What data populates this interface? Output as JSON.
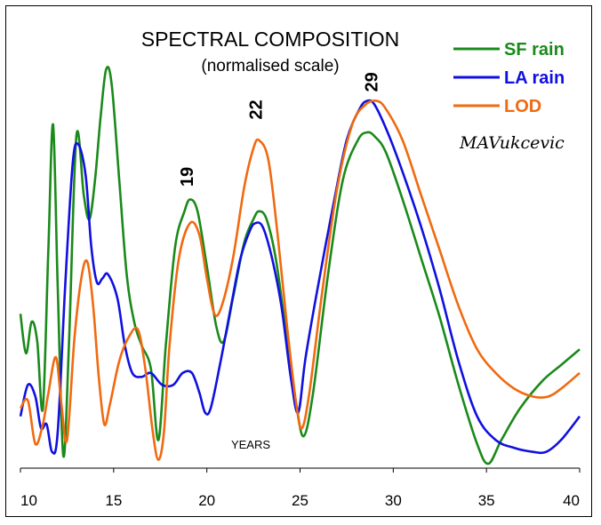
{
  "chart_data": {
    "type": "line",
    "title": "SPECTRAL COMPOSITION",
    "subtitle": "(normalised scale)",
    "xlabel": "YEARS",
    "author": "MAVukcevic",
    "xlim": [
      10,
      40
    ],
    "ylim": [
      0,
      1
    ],
    "x_ticks": [
      "10",
      "15",
      "20",
      "25",
      "30",
      "35",
      "40"
    ],
    "grid": false,
    "legend_position": "top-right",
    "annotations": [
      {
        "label": "19",
        "x": 19.0,
        "y": 0.68
      },
      {
        "label": "22",
        "x": 22.7,
        "y": 0.85
      },
      {
        "label": "29",
        "x": 28.9,
        "y": 0.92
      }
    ],
    "series": [
      {
        "name": "SF rain",
        "color": "#1a8a1a",
        "points": [
          [
            10,
            0.38
          ],
          [
            10.3,
            0.28
          ],
          [
            10.6,
            0.36
          ],
          [
            10.9,
            0.31
          ],
          [
            11.2,
            0.14
          ],
          [
            11.5,
            0.55
          ],
          [
            11.75,
            0.86
          ],
          [
            12,
            0.45
          ],
          [
            12.3,
            0.02
          ],
          [
            12.6,
            0.3
          ],
          [
            13,
            0.83
          ],
          [
            13.4,
            0.68
          ],
          [
            13.7,
            0.62
          ],
          [
            14,
            0.72
          ],
          [
            14.3,
            0.88
          ],
          [
            14.6,
            1.0
          ],
          [
            14.9,
            0.96
          ],
          [
            15.3,
            0.72
          ],
          [
            15.7,
            0.48
          ],
          [
            16.1,
            0.36
          ],
          [
            16.5,
            0.3
          ],
          [
            17,
            0.24
          ],
          [
            17.4,
            0.06
          ],
          [
            17.8,
            0.3
          ],
          [
            18.3,
            0.55
          ],
          [
            18.8,
            0.64
          ],
          [
            19.1,
            0.67
          ],
          [
            19.5,
            0.64
          ],
          [
            20,
            0.5
          ],
          [
            20.5,
            0.35
          ],
          [
            20.9,
            0.31
          ],
          [
            21.4,
            0.42
          ],
          [
            22,
            0.56
          ],
          [
            22.5,
            0.62
          ],
          [
            22.8,
            0.64
          ],
          [
            23.2,
            0.62
          ],
          [
            23.7,
            0.52
          ],
          [
            24.2,
            0.35
          ],
          [
            24.8,
            0.15
          ],
          [
            25.2,
            0.07
          ],
          [
            25.7,
            0.18
          ],
          [
            26.5,
            0.48
          ],
          [
            27.3,
            0.72
          ],
          [
            28.1,
            0.82
          ],
          [
            28.6,
            0.84
          ],
          [
            29,
            0.83
          ],
          [
            29.6,
            0.79
          ],
          [
            30.5,
            0.67
          ],
          [
            31.5,
            0.52
          ],
          [
            32.5,
            0.37
          ],
          [
            33.5,
            0.2
          ],
          [
            34.5,
            0.05
          ],
          [
            35.1,
            0.0
          ],
          [
            35.8,
            0.06
          ],
          [
            36.8,
            0.14
          ],
          [
            38,
            0.21
          ],
          [
            39,
            0.25
          ],
          [
            40,
            0.29
          ]
        ]
      },
      {
        "name": "LA rain",
        "color": "#1010e0",
        "points": [
          [
            10,
            0.12
          ],
          [
            10.4,
            0.2
          ],
          [
            10.8,
            0.17
          ],
          [
            11.1,
            0.09
          ],
          [
            11.4,
            0.1
          ],
          [
            11.7,
            0.03
          ],
          [
            12,
            0.08
          ],
          [
            12.4,
            0.45
          ],
          [
            12.8,
            0.76
          ],
          [
            13.1,
            0.81
          ],
          [
            13.5,
            0.73
          ],
          [
            13.8,
            0.55
          ],
          [
            14.1,
            0.46
          ],
          [
            14.4,
            0.47
          ],
          [
            14.7,
            0.48
          ],
          [
            15.2,
            0.42
          ],
          [
            15.6,
            0.3
          ],
          [
            16,
            0.23
          ],
          [
            16.5,
            0.22
          ],
          [
            17,
            0.23
          ],
          [
            17.6,
            0.2
          ],
          [
            18.2,
            0.2
          ],
          [
            18.7,
            0.23
          ],
          [
            19.2,
            0.23
          ],
          [
            19.6,
            0.18
          ],
          [
            19.9,
            0.13
          ],
          [
            20.2,
            0.14
          ],
          [
            20.7,
            0.25
          ],
          [
            21.3,
            0.4
          ],
          [
            21.8,
            0.52
          ],
          [
            22.3,
            0.59
          ],
          [
            22.6,
            0.61
          ],
          [
            23,
            0.6
          ],
          [
            23.5,
            0.52
          ],
          [
            24,
            0.4
          ],
          [
            24.5,
            0.22
          ],
          [
            24.9,
            0.13
          ],
          [
            25.3,
            0.27
          ],
          [
            26,
            0.46
          ],
          [
            26.8,
            0.66
          ],
          [
            27.5,
            0.82
          ],
          [
            28.2,
            0.9
          ],
          [
            28.6,
            0.92
          ],
          [
            29,
            0.91
          ],
          [
            29.7,
            0.84
          ],
          [
            30.5,
            0.74
          ],
          [
            31.5,
            0.6
          ],
          [
            32.5,
            0.44
          ],
          [
            33.5,
            0.26
          ],
          [
            34.5,
            0.12
          ],
          [
            35.5,
            0.06
          ],
          [
            36.5,
            0.04
          ],
          [
            37.5,
            0.03
          ],
          [
            38.2,
            0.03
          ],
          [
            39,
            0.06
          ],
          [
            40,
            0.12
          ]
        ]
      },
      {
        "name": "LOD",
        "color": "#f06a10",
        "points": [
          [
            10,
            0.14
          ],
          [
            10.4,
            0.16
          ],
          [
            10.8,
            0.05
          ],
          [
            11.2,
            0.1
          ],
          [
            11.5,
            0.18
          ],
          [
            11.9,
            0.27
          ],
          [
            12.2,
            0.15
          ],
          [
            12.5,
            0.06
          ],
          [
            12.9,
            0.32
          ],
          [
            13.3,
            0.48
          ],
          [
            13.6,
            0.51
          ],
          [
            13.9,
            0.4
          ],
          [
            14.2,
            0.22
          ],
          [
            14.5,
            0.1
          ],
          [
            14.8,
            0.15
          ],
          [
            15.3,
            0.26
          ],
          [
            15.8,
            0.32
          ],
          [
            16.3,
            0.34
          ],
          [
            16.7,
            0.24
          ],
          [
            17.1,
            0.08
          ],
          [
            17.4,
            0.01
          ],
          [
            17.7,
            0.08
          ],
          [
            18,
            0.3
          ],
          [
            18.5,
            0.52
          ],
          [
            19.1,
            0.61
          ],
          [
            19.6,
            0.58
          ],
          [
            20,
            0.47
          ],
          [
            20.4,
            0.38
          ],
          [
            20.8,
            0.4
          ],
          [
            21.4,
            0.52
          ],
          [
            22,
            0.7
          ],
          [
            22.5,
            0.8
          ],
          [
            22.8,
            0.82
          ],
          [
            23.3,
            0.77
          ],
          [
            23.8,
            0.58
          ],
          [
            24.3,
            0.35
          ],
          [
            24.8,
            0.15
          ],
          [
            25.1,
            0.09
          ],
          [
            25.5,
            0.18
          ],
          [
            26.2,
            0.44
          ],
          [
            27,
            0.7
          ],
          [
            27.8,
            0.86
          ],
          [
            28.5,
            0.91
          ],
          [
            29.1,
            0.92
          ],
          [
            29.6,
            0.9
          ],
          [
            30.5,
            0.82
          ],
          [
            31.5,
            0.68
          ],
          [
            32.5,
            0.54
          ],
          [
            33.5,
            0.4
          ],
          [
            34.5,
            0.29
          ],
          [
            35.5,
            0.23
          ],
          [
            36.5,
            0.19
          ],
          [
            37.5,
            0.17
          ],
          [
            38.3,
            0.17
          ],
          [
            39,
            0.19
          ],
          [
            40,
            0.23
          ]
        ]
      }
    ]
  }
}
